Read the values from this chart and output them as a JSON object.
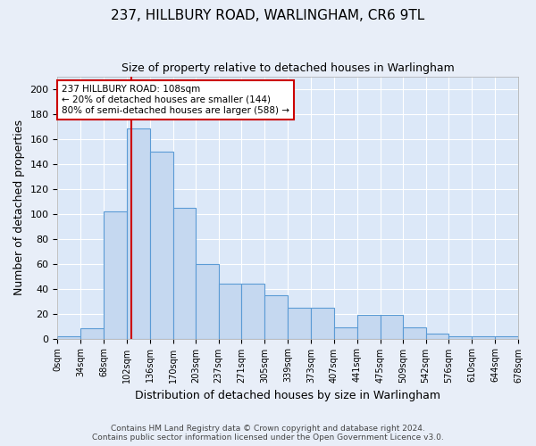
{
  "title": "237, HILLBURY ROAD, WARLINGHAM, CR6 9TL",
  "subtitle": "Size of property relative to detached houses in Warlingham",
  "xlabel": "Distribution of detached houses by size in Warlingham",
  "ylabel": "Number of detached properties",
  "bar_color": "#c5d8f0",
  "bar_edge_color": "#5b9bd5",
  "background_color": "#dce8f8",
  "grid_color": "#ffffff",
  "bin_edges": [
    0,
    34,
    68,
    102,
    136,
    170,
    203,
    237,
    271,
    305,
    339,
    373,
    407,
    441,
    475,
    509,
    542,
    576,
    610,
    644,
    678
  ],
  "bin_labels": [
    "0sqm",
    "34sqm",
    "68sqm",
    "102sqm",
    "136sqm",
    "170sqm",
    "203sqm",
    "237sqm",
    "271sqm",
    "305sqm",
    "339sqm",
    "373sqm",
    "407sqm",
    "441sqm",
    "475sqm",
    "509sqm",
    "542sqm",
    "576sqm",
    "610sqm",
    "644sqm",
    "678sqm"
  ],
  "bar_heights": [
    2,
    8,
    102,
    168,
    150,
    105,
    60,
    44,
    44,
    35,
    25,
    25,
    9,
    19,
    19,
    9,
    4,
    2,
    2,
    2
  ],
  "ylim": [
    0,
    210
  ],
  "yticks": [
    0,
    20,
    40,
    60,
    80,
    100,
    120,
    140,
    160,
    180,
    200
  ],
  "red_line_x": 108,
  "annotation_text": "237 HILLBURY ROAD: 108sqm\n← 20% of detached houses are smaller (144)\n80% of semi-detached houses are larger (588) →",
  "annotation_box_color": "#ffffff",
  "annotation_box_edge_color": "#cc0000",
  "red_line_color": "#cc0000",
  "footer_line1": "Contains HM Land Registry data © Crown copyright and database right 2024.",
  "footer_line2": "Contains public sector information licensed under the Open Government Licence v3.0."
}
